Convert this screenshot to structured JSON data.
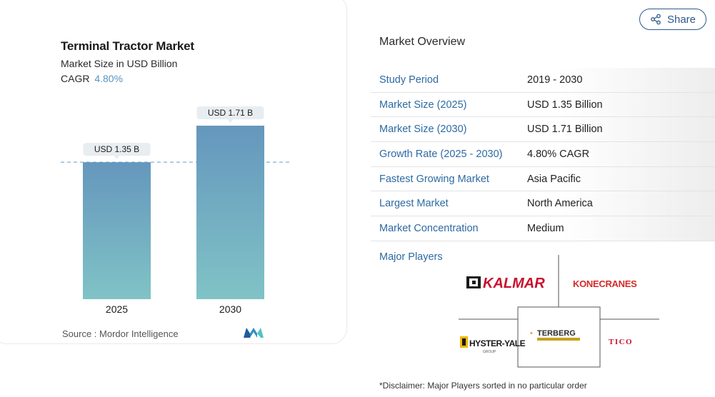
{
  "chart": {
    "title": "Terminal Tractor Market",
    "subtitle": "Market Size in USD Billion",
    "cagr_label": "CAGR",
    "cagr_value": "4.80%",
    "source": "Source :  Mordor Intelligence"
  },
  "chart_data": {
    "type": "bar",
    "title": "Terminal Tractor Market",
    "subtitle": "Market Size in USD Billion",
    "categories": [
      "2025",
      "2030"
    ],
    "values": [
      1.35,
      1.71
    ],
    "data_labels": [
      "USD 1.35 B",
      "USD 1.71 B"
    ],
    "ylim": [
      0,
      1.71
    ],
    "reference_line": 1.35,
    "grid": false,
    "colors": {
      "bar_top": "#6597bd",
      "bar_bottom": "#80c3c6",
      "label_bg": "#e8edf1",
      "reference_line": "#7fb2d6"
    }
  },
  "share": {
    "label": "Share",
    "icon": "share-icon"
  },
  "overview": {
    "title": "Market Overview",
    "rows": [
      {
        "label": "Study Period",
        "value": "2019 - 2030"
      },
      {
        "label": "Market Size (2025)",
        "value": "USD 1.35 Billion"
      },
      {
        "label": "Market Size (2030)",
        "value": "USD 1.71 Billion"
      },
      {
        "label": "Growth Rate (2025 - 2030)",
        "value": "4.80% CAGR"
      },
      {
        "label": "Fastest Growing Market",
        "value": "Asia Pacific"
      },
      {
        "label": "Largest Market",
        "value": "North America"
      },
      {
        "label": "Market Concentration",
        "value": "Medium"
      }
    ]
  },
  "major_players": {
    "label": "Major Players",
    "logos": [
      {
        "name": "KALMAR",
        "color": "#c8102e"
      },
      {
        "name": "KONECRANES",
        "color": "#d62a28"
      },
      {
        "name": "TERBERG",
        "color": "#2a2a2a"
      },
      {
        "name": "HYSTER-YALE",
        "sub": "GROUP",
        "color": "#1a1a1a"
      },
      {
        "name": "TICO",
        "color": "#c8102e"
      }
    ]
  },
  "disclaimer": "*Disclaimer: Major Players sorted in no particular order"
}
